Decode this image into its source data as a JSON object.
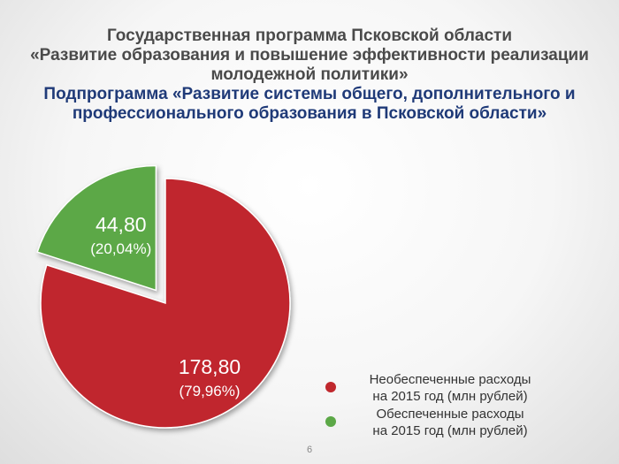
{
  "header": {
    "title_lines": [
      "Государственная программа Псковской области",
      "«Развитие образования и повышение эффективности реализации",
      "молодежной политики»"
    ],
    "subtitle_lines": [
      "Подпрограмма «Развитие системы общего, дополнительного и",
      "профессионального образования в Псковской области»"
    ]
  },
  "chart_data": {
    "type": "pie",
    "title": "",
    "slices": [
      {
        "value": 178.8,
        "value_label": "178,80",
        "percent_label": "(79,96%)",
        "color": "#c0282d",
        "legend": [
          "Необеспеченные расходы",
          "на 2015 год  (млн рублей)"
        ]
      },
      {
        "value": 44.8,
        "value_label": "44,80",
        "percent_label": "(20,04%)",
        "color": "#5ca847",
        "legend": [
          "Обеспеченные расходы",
          "на 2015 год (млн рублей)"
        ],
        "exploded": true
      }
    ],
    "legend_position": "bottom-right"
  },
  "footer": {
    "page_number": "6"
  }
}
